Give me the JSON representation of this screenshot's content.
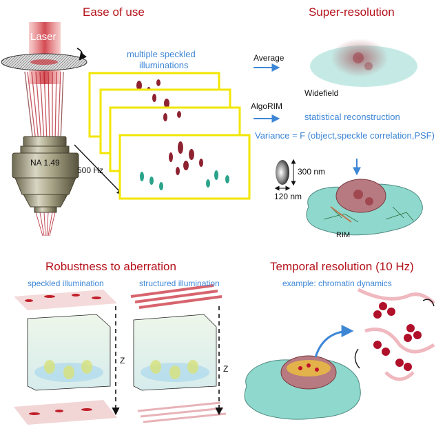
{
  "panels": {
    "ease_of_use": {
      "title": "Ease of use",
      "laser_label": "Laser",
      "objective_label": "NA 1.49",
      "frequency_label": "500 Hz",
      "illuminations_label_line1": "multiple speckled",
      "illuminations_label_line2": "illuminations"
    },
    "super_resolution": {
      "title": "Super-resolution",
      "average_label": "Average",
      "widefield_label": "Widefield",
      "algorim_label": "AlgoRIM",
      "statistical_label": "statistical reconstruction",
      "variance_label": "Variance = F (object,speckle correlation,PSF)",
      "axial_size_label": "300 nm",
      "lateral_size_label": "120 nm",
      "rim_label": "RIM"
    },
    "robustness": {
      "title": "Robustness to aberration",
      "speckled_label": "speckled illumination",
      "structured_label": "structured illumination",
      "z_label_left": "Z",
      "z_label_right": "Z"
    },
    "temporal": {
      "title": "Temporal resolution (10 Hz)",
      "example_label": "example: chromatin dynamics"
    }
  },
  "colors": {
    "title_red": "#b5121b",
    "label_blue": "#3d86d6",
    "frame_yellow": "#f2e600",
    "cell_teal": "#7fd1c6",
    "nucleus": "#a8646b",
    "chromatin": "#c0102a"
  }
}
